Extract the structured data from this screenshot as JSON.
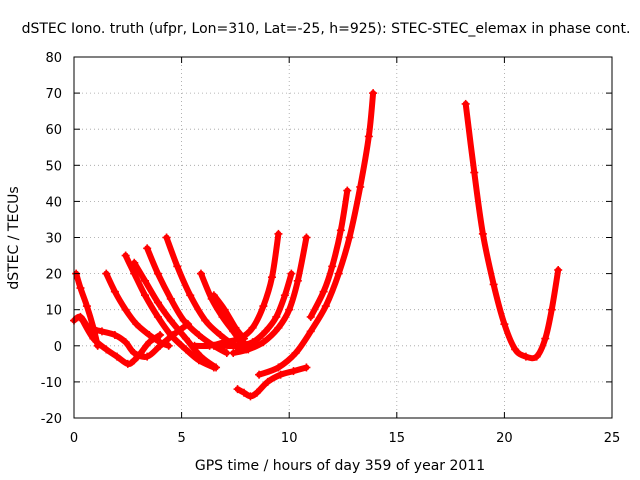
{
  "chart_data": {
    "type": "scatter",
    "title": "dSTEC Iono. truth (ufpr, Lon=310, Lat=-25, h=925): STEC-STEC_elemax in phase cont.",
    "xlabel": "GPS time / hours of day 359 of year 2011",
    "ylabel": "dSTEC  / TECUs",
    "xlim": [
      0,
      25
    ],
    "ylim": [
      -20,
      80
    ],
    "xticks": [
      0,
      5,
      10,
      15,
      20,
      25
    ],
    "yticks": [
      -20,
      -10,
      0,
      10,
      20,
      30,
      40,
      50,
      60,
      70,
      80
    ],
    "grid": true,
    "marker": "plus",
    "color": "#ff0000",
    "series": [
      {
        "x": [
          0.1,
          0.3,
          0.6,
          0.9,
          1.1
        ],
        "y": [
          20,
          16,
          11,
          5,
          0
        ]
      },
      {
        "x": [
          0.0,
          0.3,
          0.7,
          1.3,
          1.9,
          2.4,
          2.8,
          3.4,
          4.0,
          4.6,
          5.3
        ],
        "y": [
          7,
          8,
          5,
          4,
          3,
          1,
          -2,
          -3,
          0,
          3,
          6
        ]
      },
      {
        "x": [
          0.4,
          0.9,
          1.5,
          2.0,
          2.5,
          2.8,
          3.1,
          3.5,
          4.0
        ],
        "y": [
          7,
          2,
          -1,
          -3,
          -5,
          -4,
          -2,
          1,
          3
        ]
      },
      {
        "x": [
          1.5,
          1.9,
          2.4,
          2.9,
          3.5,
          4.0,
          4.4
        ],
        "y": [
          20,
          15,
          10,
          6,
          3,
          1,
          0
        ]
      },
      {
        "x": [
          2.4,
          2.8,
          3.3,
          3.9,
          4.5,
          5.2,
          5.8,
          6.5
        ],
        "y": [
          25,
          20,
          14,
          8,
          3,
          -1,
          -4,
          -6
        ]
      },
      {
        "x": [
          2.8,
          3.3,
          3.9,
          4.5,
          5.2,
          5.9,
          6.6
        ],
        "y": [
          23,
          18,
          12,
          7,
          2,
          -3,
          -6
        ]
      },
      {
        "x": [
          3.4,
          3.9,
          4.5,
          5.1,
          5.8,
          6.5,
          7.1
        ],
        "y": [
          27,
          20,
          13,
          7,
          3,
          0,
          -2
        ]
      },
      {
        "x": [
          4.3,
          4.8,
          5.4,
          6.1,
          6.8,
          7.5,
          8.0
        ],
        "y": [
          30,
          22,
          14,
          7,
          3,
          0,
          -1
        ]
      },
      {
        "x": [
          5.9,
          6.4,
          6.9,
          7.4,
          7.8,
          8.3
        ],
        "y": [
          20,
          13,
          8,
          4,
          1,
          0
        ]
      },
      {
        "x": [
          6.5,
          7.0,
          7.5,
          7.9
        ],
        "y": [
          14,
          10,
          5,
          2
        ]
      },
      {
        "x": [
          7.6,
          7.9,
          8.2,
          8.5,
          9.0,
          9.6,
          10.2,
          10.8
        ],
        "y": [
          -12,
          -13,
          -14,
          -13,
          -10,
          -8,
          -7,
          -6
        ]
      },
      {
        "x": [
          5.6,
          6.3,
          7.0,
          7.7,
          8.3,
          8.8,
          9.2,
          9.5
        ],
        "y": [
          0,
          0,
          1,
          2,
          5,
          11,
          19,
          31
        ]
      },
      {
        "x": [
          6.9,
          7.6,
          8.3,
          8.9,
          9.4,
          9.8,
          10.1
        ],
        "y": [
          0,
          0,
          1,
          4,
          8,
          14,
          20
        ]
      },
      {
        "x": [
          7.4,
          8.1,
          8.8,
          9.5,
          10.0,
          10.4,
          10.8
        ],
        "y": [
          -2,
          -1,
          1,
          5,
          10,
          18,
          30
        ]
      },
      {
        "x": [
          8.6,
          9.5,
          10.3,
          11.0,
          11.7,
          12.3,
          12.8,
          13.3,
          13.7,
          13.9
        ],
        "y": [
          -8,
          -6,
          -2,
          4,
          11,
          20,
          30,
          44,
          58,
          70
        ]
      },
      {
        "x": [
          11.0,
          11.6,
          12.0,
          12.4,
          12.7
        ],
        "y": [
          8,
          15,
          22,
          32,
          43
        ]
      },
      {
        "x": [
          18.2,
          18.6,
          19.0,
          19.5,
          20.0,
          20.5,
          21.0,
          21.5,
          21.9,
          22.2,
          22.5
        ],
        "y": [
          67,
          48,
          31,
          17,
          6,
          -1,
          -3,
          -3,
          2,
          10,
          21
        ]
      }
    ]
  }
}
